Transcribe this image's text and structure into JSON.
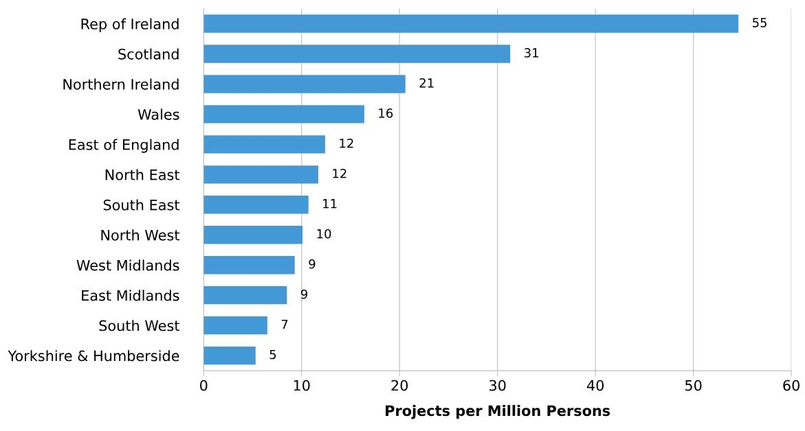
{
  "chart_data": {
    "type": "bar",
    "orientation": "horizontal",
    "xlabel": "Projects per Million Persons",
    "categories": [
      "Rep of Ireland",
      "Scotland",
      "Northern Ireland",
      "Wales",
      "East of England",
      "North East",
      "South East",
      "North West",
      "West Midlands",
      "East Midlands",
      "South West",
      "Yorkshire & Humberside"
    ],
    "values": [
      54.6,
      31.3,
      20.6,
      16.4,
      12.4,
      11.7,
      10.7,
      10.1,
      9.3,
      8.5,
      6.5,
      5.3
    ],
    "value_labels": [
      "55",
      "31",
      "21",
      "16",
      "12",
      "12",
      "11",
      "10",
      "9",
      "9",
      "7",
      "5"
    ],
    "color": "#4398d6",
    "xlim": [
      0,
      60
    ],
    "xticks": [
      0,
      10,
      20,
      30,
      40,
      50,
      60
    ],
    "grid": "x"
  }
}
